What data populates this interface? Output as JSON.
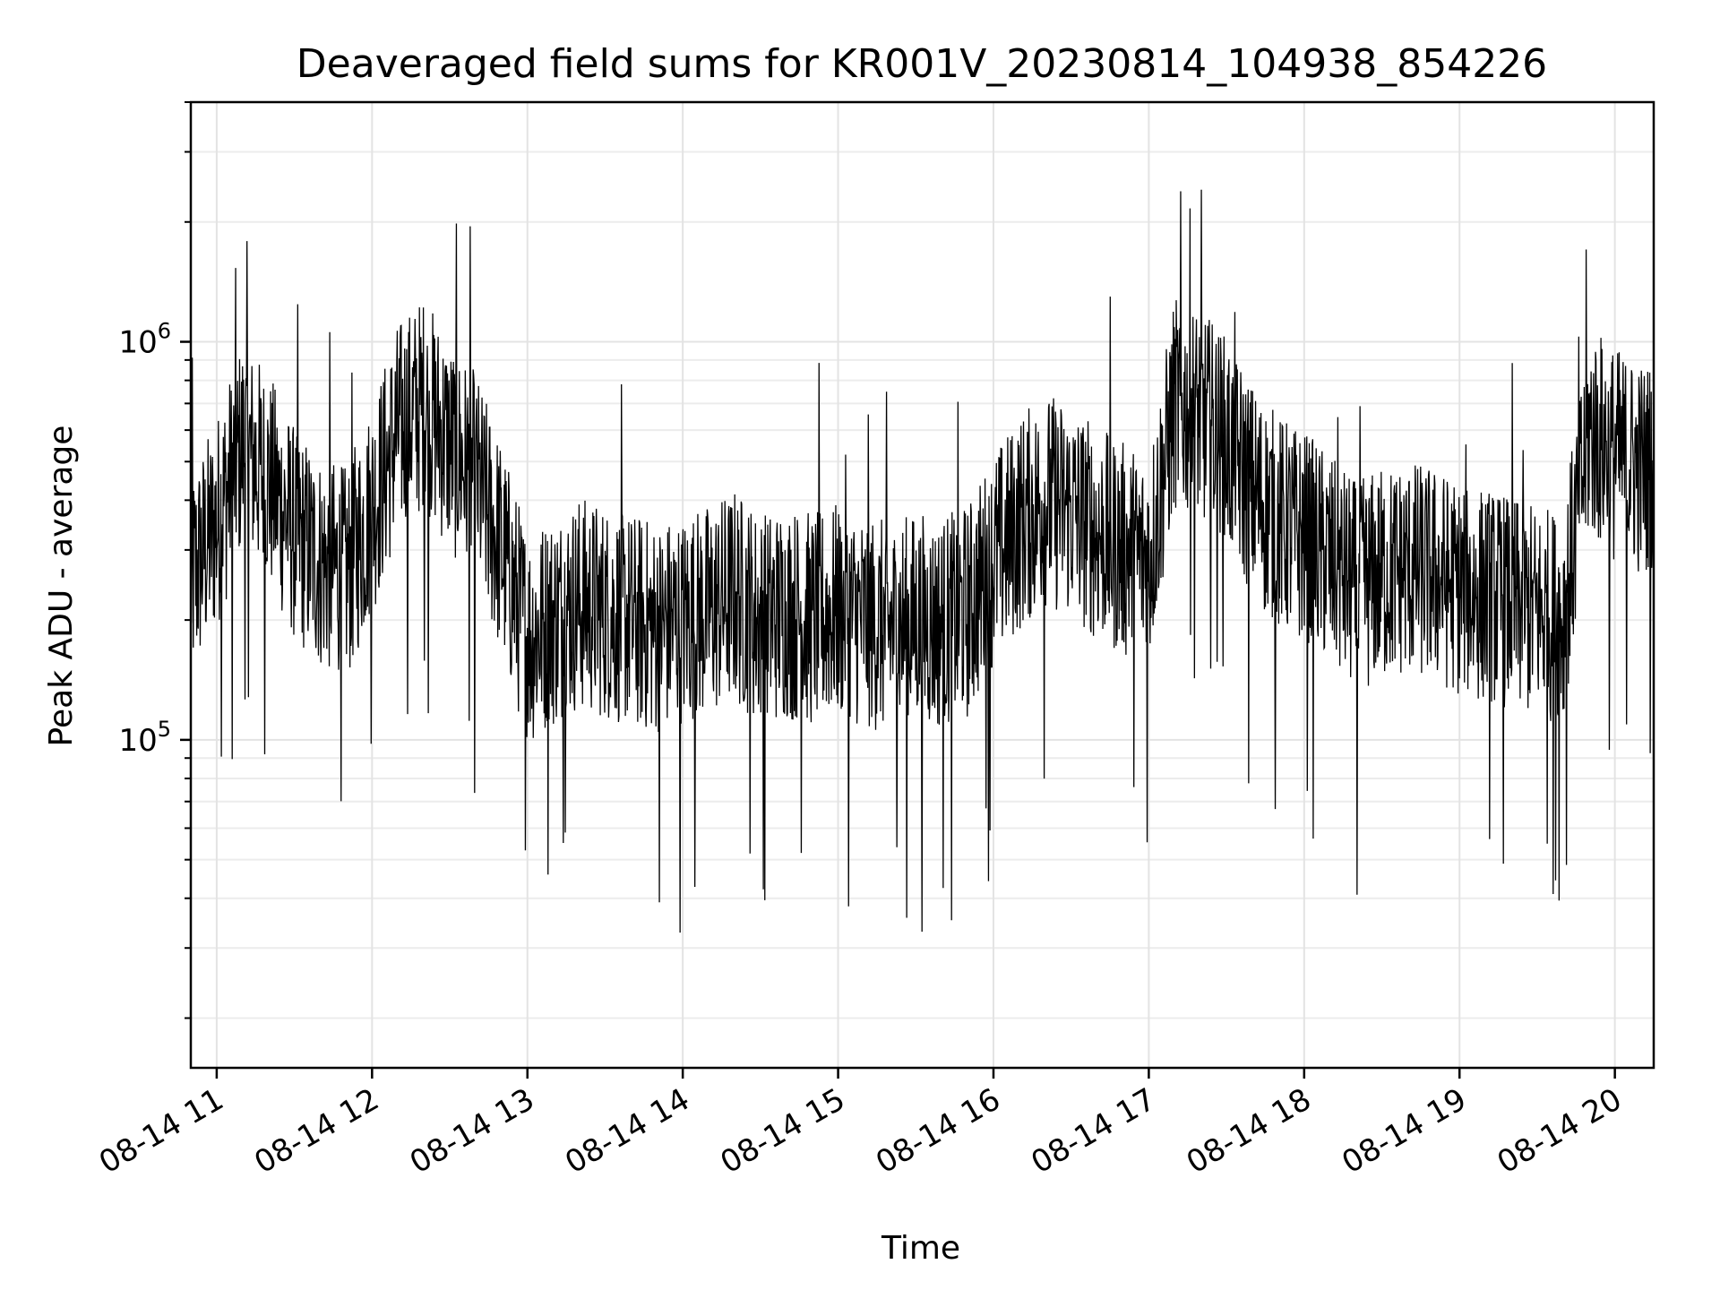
{
  "chart_data": {
    "type": "line",
    "title": "Deaveraged field sums for KR001V_20230814_104938_854226",
    "xlabel": "Time",
    "ylabel": "Peak ADU - average",
    "yscale": "log",
    "xlim": [
      "2023-08-14 10:50",
      "2023-08-14 20:15"
    ],
    "ylim": [
      15000,
      4000000
    ],
    "grid": true,
    "line_color": "#000000",
    "x_ticks": [
      "08-14 11",
      "08-14 12",
      "08-14 13",
      "08-14 14",
      "08-14 15",
      "08-14 16",
      "08-14 17",
      "08-14 18",
      "08-14 19",
      "08-14 20"
    ],
    "y_ticks": [
      {
        "value": 100000,
        "base": "10",
        "exp": "5"
      },
      {
        "value": 1000000,
        "base": "10",
        "exp": "6"
      }
    ],
    "series": [
      {
        "x": [
          "2023-08-14 10:50",
          "2023-08-14 11:00",
          "2023-08-14 11:10",
          "2023-08-14 11:20",
          "2023-08-14 11:30",
          "2023-08-14 11:40",
          "2023-08-14 11:50",
          "2023-08-14 12:00",
          "2023-08-14 12:10",
          "2023-08-14 12:20",
          "2023-08-14 12:30",
          "2023-08-14 12:40",
          "2023-08-14 12:50",
          "2023-08-14 13:00",
          "2023-08-14 13:10",
          "2023-08-14 13:20",
          "2023-08-14 13:30",
          "2023-08-14 13:40",
          "2023-08-14 13:50",
          "2023-08-14 14:00",
          "2023-08-14 14:10",
          "2023-08-14 14:20",
          "2023-08-14 14:30",
          "2023-08-14 14:40",
          "2023-08-14 14:50",
          "2023-08-14 15:00",
          "2023-08-14 15:10",
          "2023-08-14 15:20",
          "2023-08-14 15:30",
          "2023-08-14 15:40",
          "2023-08-14 15:50",
          "2023-08-14 16:00",
          "2023-08-14 16:10",
          "2023-08-14 16:20",
          "2023-08-14 16:30",
          "2023-08-14 16:40",
          "2023-08-14 16:50",
          "2023-08-14 17:00",
          "2023-08-14 17:10",
          "2023-08-14 17:20",
          "2023-08-14 17:30",
          "2023-08-14 17:40",
          "2023-08-14 17:50",
          "2023-08-14 18:00",
          "2023-08-14 18:10",
          "2023-08-14 18:20",
          "2023-08-14 18:30",
          "2023-08-14 18:40",
          "2023-08-14 18:50",
          "2023-08-14 19:00",
          "2023-08-14 19:10",
          "2023-08-14 19:20",
          "2023-08-14 19:30",
          "2023-08-14 19:40",
          "2023-08-14 19:50",
          "2023-08-14 20:00",
          "2023-08-14 20:10"
        ],
        "y": [
          250000,
          350000,
          550000,
          450000,
          330000,
          280000,
          260000,
          380000,
          600000,
          700000,
          550000,
          450000,
          300000,
          180000,
          200000,
          220000,
          210000,
          200000,
          190000,
          200000,
          210000,
          230000,
          200000,
          210000,
          200000,
          210000,
          200000,
          190000,
          200000,
          195000,
          210000,
          280000,
          350000,
          400000,
          380000,
          330000,
          300000,
          280000,
          700000,
          650000,
          550000,
          420000,
          350000,
          320000,
          280000,
          240000,
          260000,
          270000,
          260000,
          240000,
          230000,
          220000,
          210000,
          200000,
          600000,
          520000,
          480000
        ]
      }
    ]
  }
}
